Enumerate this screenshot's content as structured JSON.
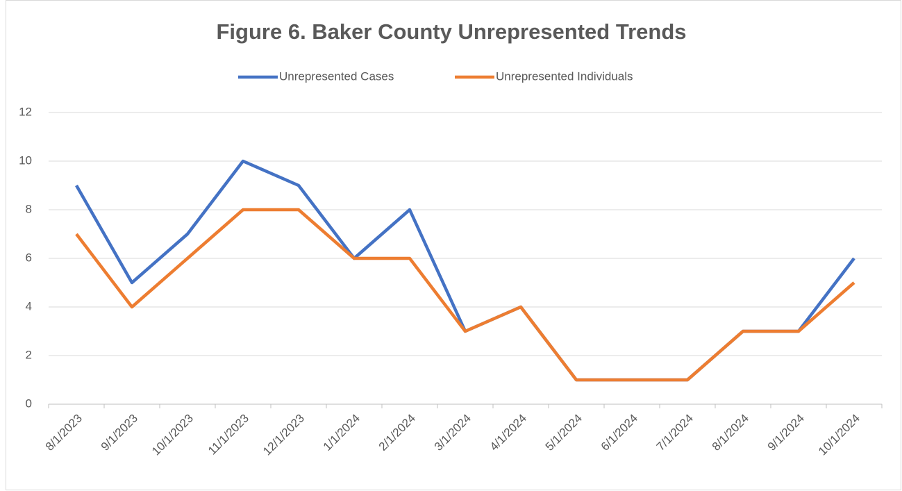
{
  "chart_data": {
    "type": "line",
    "title": "Figure 6. Baker County Unrepresented Trends",
    "categories": [
      "8/1/2023",
      "9/1/2023",
      "10/1/2023",
      "11/1/2023",
      "12/1/2023",
      "1/1/2024",
      "2/1/2024",
      "3/1/2024",
      "4/1/2024",
      "5/1/2024",
      "6/1/2024",
      "7/1/2024",
      "8/1/2024",
      "9/1/2024",
      "10/1/2024"
    ],
    "series": [
      {
        "name": "Unrepresented Cases",
        "color": "#4472c4",
        "values": [
          9,
          5,
          7,
          10,
          9,
          6,
          8,
          3,
          4,
          1,
          1,
          1,
          3,
          3,
          6
        ]
      },
      {
        "name": "Unrepresented Individuals",
        "color": "#ed7d31",
        "values": [
          7,
          4,
          6,
          8,
          8,
          6,
          6,
          3,
          4,
          1,
          1,
          1,
          3,
          3,
          5
        ]
      }
    ],
    "ylim": [
      0,
      12
    ],
    "yticks": [
      0,
      2,
      4,
      6,
      8,
      10,
      12
    ],
    "grid": true,
    "legend": "top"
  }
}
